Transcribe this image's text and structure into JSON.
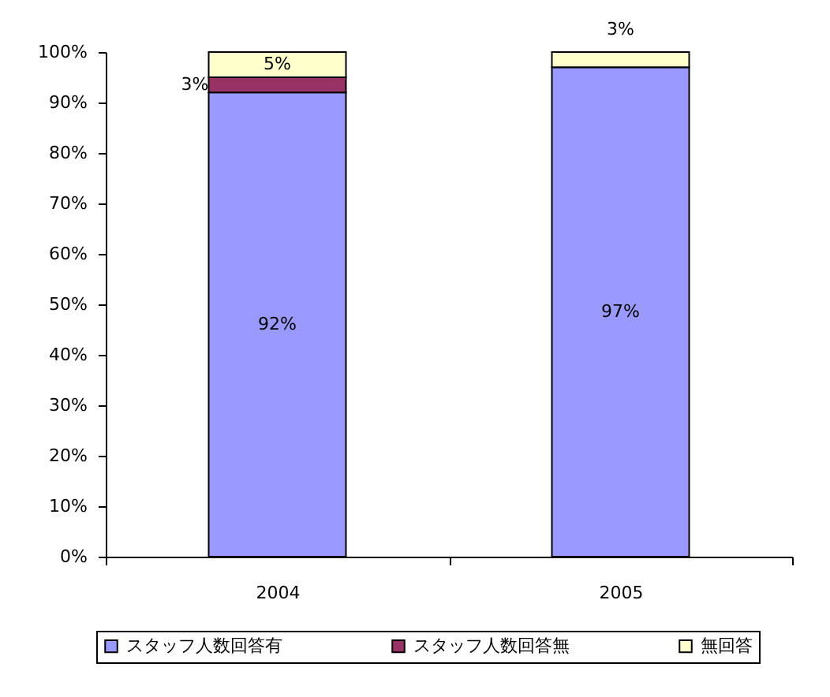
{
  "chart_data": {
    "type": "bar",
    "stacked": true,
    "categories": [
      "2004",
      "2005"
    ],
    "series": [
      {
        "name": "スタッフ人数回答有",
        "color": "#9999ff",
        "values": [
          92,
          97
        ],
        "value_labels": [
          "92%",
          "97%"
        ]
      },
      {
        "name": "スタッフ人数回答無",
        "color": "#993366",
        "values": [
          3,
          0
        ],
        "value_labels": [
          "3%",
          null
        ]
      },
      {
        "name": "無回答",
        "color": "#ffffcc",
        "values": [
          5,
          3
        ],
        "value_labels": [
          "5%",
          "3%"
        ]
      }
    ],
    "ylim": [
      0,
      100
    ],
    "yticks": [
      {
        "value": 0,
        "label": "0%"
      },
      {
        "value": 10,
        "label": "10%"
      },
      {
        "value": 20,
        "label": "20%"
      },
      {
        "value": 30,
        "label": "30%"
      },
      {
        "value": 40,
        "label": "40%"
      },
      {
        "value": 50,
        "label": "50%"
      },
      {
        "value": 60,
        "label": "60%"
      },
      {
        "value": 70,
        "label": "70%"
      },
      {
        "value": 80,
        "label": "80%"
      },
      {
        "value": 90,
        "label": "90%"
      },
      {
        "value": 100,
        "label": "100%"
      }
    ],
    "grid": false,
    "legend": "bottom"
  }
}
